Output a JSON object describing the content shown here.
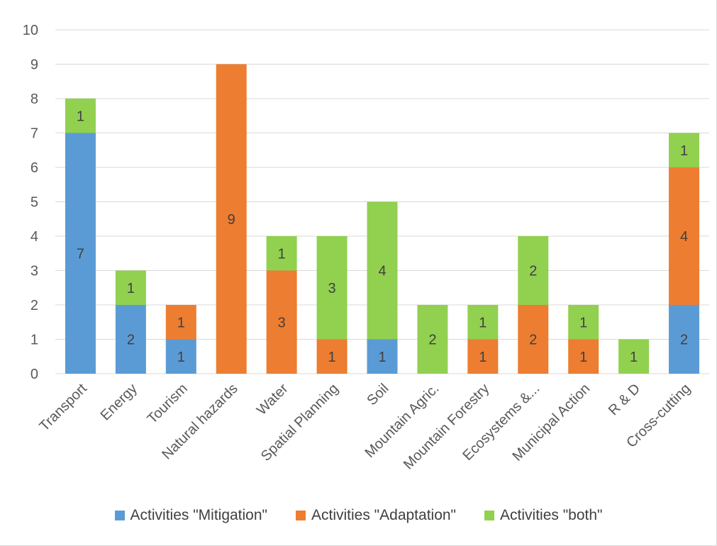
{
  "chart_data": {
    "type": "bar",
    "stacked": true,
    "categories": [
      "Transport",
      "Energy",
      "Tourism",
      "Natural hazards",
      "Water",
      "Spatial Planning",
      "Soil",
      "Mountain Agric.",
      "Mountain Forestry",
      "Ecosystems &...",
      "Municipal Action",
      "R & D",
      "Cross-cutting"
    ],
    "series": [
      {
        "name": "Activities \"Mitigation\"",
        "color": "#5b9bd5",
        "values": [
          7,
          2,
          1,
          0,
          0,
          0,
          1,
          0,
          0,
          0,
          0,
          0,
          2
        ]
      },
      {
        "name": "Activities \"Adaptation\"",
        "color": "#ed7d31",
        "values": [
          0,
          0,
          1,
          9,
          3,
          1,
          0,
          0,
          1,
          2,
          1,
          0,
          4
        ]
      },
      {
        "name": "Activities \"both\"",
        "color": "#92d050",
        "values": [
          1,
          1,
          0,
          0,
          1,
          3,
          4,
          2,
          1,
          2,
          1,
          1,
          1
        ]
      }
    ],
    "ylim": [
      0,
      10
    ],
    "yticks": [
      "0",
      "1",
      "2",
      "3",
      "4",
      "5",
      "6",
      "7",
      "8",
      "9",
      "10"
    ],
    "grid": true,
    "data_labels": true,
    "legend_position": "bottom",
    "title": "",
    "xlabel": "",
    "ylabel": ""
  },
  "legend": {
    "items": [
      {
        "label": "Activities \"Mitigation\"",
        "color": "#5b9bd5"
      },
      {
        "label": "Activities \"Adaptation\"",
        "color": "#ed7d31"
      },
      {
        "label": "Activities \"both\"",
        "color": "#92d050"
      }
    ]
  }
}
